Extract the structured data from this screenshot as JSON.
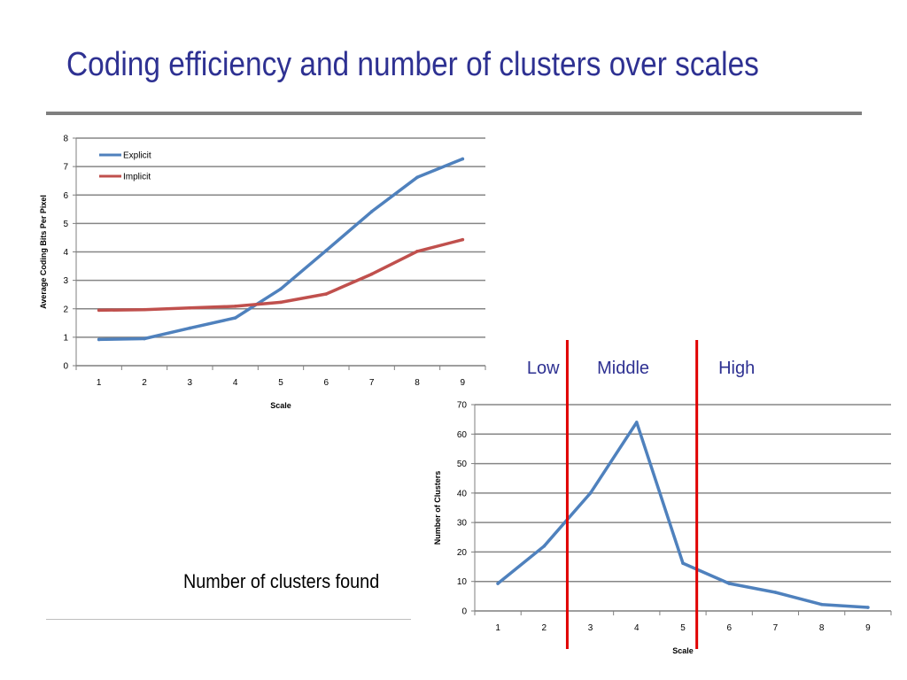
{
  "title": "Coding efficiency and number of clusters over scales",
  "caption": "Number of clusters found",
  "colors": {
    "title": "#2e3192",
    "explicit": "#4f81bd",
    "implicit": "#c0504d",
    "divider": "#e00000"
  },
  "chart_data": [
    {
      "type": "line",
      "x": [
        1,
        2,
        3,
        4,
        5,
        6,
        7,
        8,
        9
      ],
      "xlabel": "Scale",
      "ylabel": "Average Coding Bits Per Pixel",
      "ylim": [
        0,
        8
      ],
      "yticks": [
        0,
        1,
        2,
        3,
        4,
        5,
        6,
        7,
        8
      ],
      "grid": true,
      "legend": "top-left",
      "series": [
        {
          "name": "Explicit",
          "color": "#4f81bd",
          "values": [
            0.92,
            0.95,
            1.32,
            1.68,
            2.7,
            4.05,
            5.42,
            6.62,
            7.27
          ]
        },
        {
          "name": "Implicit",
          "color": "#c0504d",
          "values": [
            1.95,
            1.97,
            2.03,
            2.09,
            2.23,
            2.52,
            3.22,
            4.02,
            4.43
          ]
        }
      ]
    },
    {
      "type": "line",
      "x": [
        1,
        2,
        3,
        4,
        5,
        6,
        7,
        8,
        9
      ],
      "xlabel": "Scale",
      "ylabel": "Number of Clusters",
      "ylim": [
        0,
        70
      ],
      "yticks": [
        0,
        10,
        20,
        30,
        40,
        50,
        60,
        70
      ],
      "grid": true,
      "series": [
        {
          "color": "#4f81bd",
          "values": [
            9.3,
            22,
            40,
            64,
            16.2,
            9.3,
            6.3,
            2.2,
            1.2
          ]
        }
      ],
      "region_dividers": [
        2.5,
        5.3
      ],
      "annotations": [
        "Low",
        "Middle",
        "High"
      ]
    }
  ]
}
